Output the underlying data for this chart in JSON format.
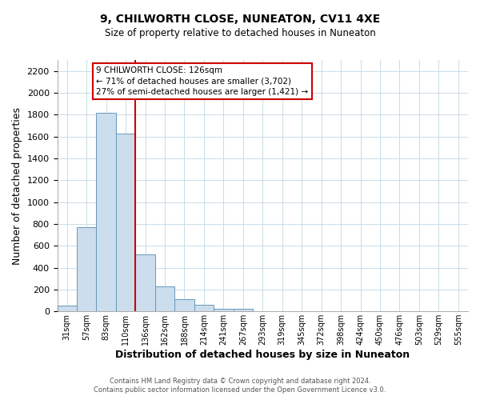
{
  "title1": "9, CHILWORTH CLOSE, NUNEATON, CV11 4XE",
  "title2": "Size of property relative to detached houses in Nuneaton",
  "xlabel": "Distribution of detached houses by size in Nuneaton",
  "ylabel": "Number of detached properties",
  "bar_labels": [
    "31sqm",
    "57sqm",
    "83sqm",
    "110sqm",
    "136sqm",
    "162sqm",
    "188sqm",
    "214sqm",
    "241sqm",
    "267sqm",
    "293sqm",
    "319sqm",
    "345sqm",
    "372sqm",
    "398sqm",
    "424sqm",
    "450sqm",
    "476sqm",
    "503sqm",
    "529sqm",
    "555sqm"
  ],
  "bar_values": [
    50,
    770,
    1820,
    1630,
    520,
    230,
    110,
    60,
    25,
    20,
    0,
    0,
    0,
    0,
    0,
    0,
    0,
    0,
    0,
    0,
    0
  ],
  "bar_color": "#ccdded",
  "bar_edge_color": "#6699bb",
  "reference_line_x": 3.5,
  "reference_line_color": "#cc0000",
  "annotation_title": "9 CHILWORTH CLOSE: 126sqm",
  "annotation_line1": "← 71% of detached houses are smaller (3,702)",
  "annotation_line2": "27% of semi-detached houses are larger (1,421) →",
  "annotation_box_color": "#cc0000",
  "ylim": [
    0,
    2300
  ],
  "yticks": [
    0,
    200,
    400,
    600,
    800,
    1000,
    1200,
    1400,
    1600,
    1800,
    2000,
    2200
  ],
  "footer1": "Contains HM Land Registry data © Crown copyright and database right 2024.",
  "footer2": "Contains public sector information licensed under the Open Government Licence v3.0.",
  "background_color": "#ffffff",
  "grid_color": "#c8dde8"
}
